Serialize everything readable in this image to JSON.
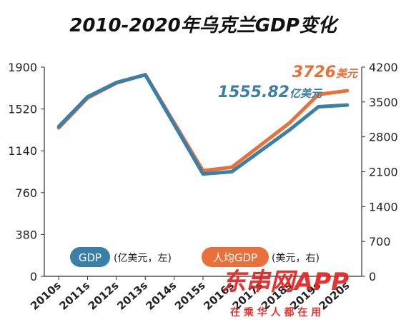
{
  "chart_data": {
    "type": "line",
    "title": "2010-2020年乌克兰GDP变化",
    "categories": [
      "2010s",
      "2011s",
      "2012s",
      "2013s",
      "2014s",
      "2015s",
      "2016s",
      "2017s",
      "2018s",
      "2019s",
      "2020s"
    ],
    "y_left": {
      "ticks": [
        "0",
        "380",
        "760",
        "1140",
        "1520",
        "1900"
      ],
      "ylim": [
        0,
        1900
      ]
    },
    "y_right": {
      "ticks": [
        "0",
        "700",
        "1400",
        "2100",
        "2800",
        "3500",
        "4200"
      ],
      "ylim": [
        0,
        4200
      ]
    },
    "series": [
      {
        "name": "GDP",
        "unit": "(亿美元，左)",
        "axis": "left",
        "color": "#3a7fa8",
        "values": [
          1360,
          1630,
          1760,
          1830,
          null,
          930,
          950,
          null,
          1330,
          1540,
          1555.82
        ]
      },
      {
        "name": "人均GDP",
        "unit": "(美元，右)",
        "axis": "right",
        "color": "#e8703a",
        "values": [
          2980,
          3580,
          3880,
          4050,
          null,
          2120,
          2190,
          null,
          3080,
          3650,
          3726
        ]
      }
    ],
    "annotations": {
      "gdp_end": {
        "number": "1555.82",
        "unit": "亿美元"
      },
      "pc_end": {
        "number": "3726",
        "unit": "美元"
      }
    },
    "grid": false,
    "legend_position": "bottom-center"
  },
  "watermark": {
    "main": "东串网APP",
    "sub": "在 乘 华 人 都 在 用"
  }
}
